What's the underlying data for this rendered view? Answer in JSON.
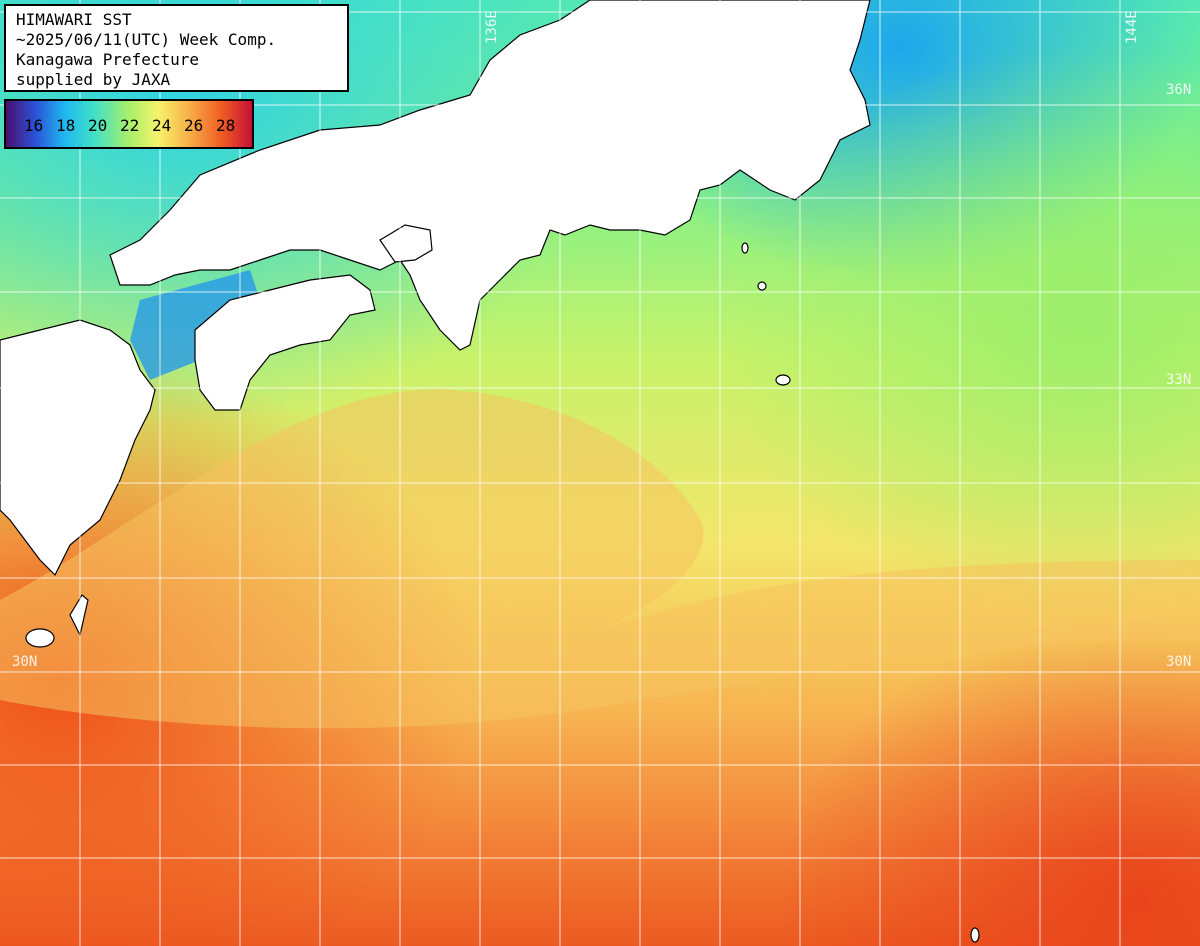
{
  "title_box": {
    "line1": "HIMAWARI SST",
    "line2": "~2025/06/11(UTC) Week Comp.",
    "line3": "Kanagawa Prefecture",
    "line4": "supplied by JAXA"
  },
  "legend": {
    "ticks": [
      "16",
      "18",
      "20",
      "22",
      "24",
      "26",
      "28"
    ],
    "colors": [
      "#4a0f6e",
      "#2a52d8",
      "#1fb9f0",
      "#42e0c6",
      "#a8f06a",
      "#f6f26a",
      "#f8b24a",
      "#ef5a21",
      "#c4103a"
    ]
  },
  "grid_labels": {
    "lon_136": "136E",
    "lon_144": "144E",
    "lat_36": "36N",
    "lat_33": "33N",
    "lat_30_left": "30N",
    "lat_30_right": "30N"
  }
}
